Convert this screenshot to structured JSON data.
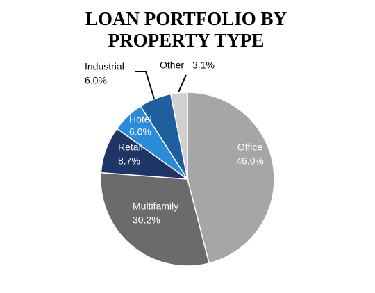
{
  "chart_data": {
    "type": "pie",
    "title": "LOAN PORTFOLIO BY PROPERTY TYPE",
    "categories": [
      "Office",
      "Multifamily",
      "Retail",
      "Hotel",
      "Industrial",
      "Other"
    ],
    "values": [
      46.0,
      30.2,
      8.7,
      6.0,
      6.0,
      3.1
    ],
    "value_labels": [
      "46.0%",
      "30.2%",
      "8.7%",
      "6.0%",
      "6.0%",
      "3.1%"
    ],
    "colors": [
      "#a6a6a6",
      "#6b6b6b",
      "#1f3566",
      "#2b8bd8",
      "#1f5f9e",
      "#d0d0d0"
    ]
  }
}
